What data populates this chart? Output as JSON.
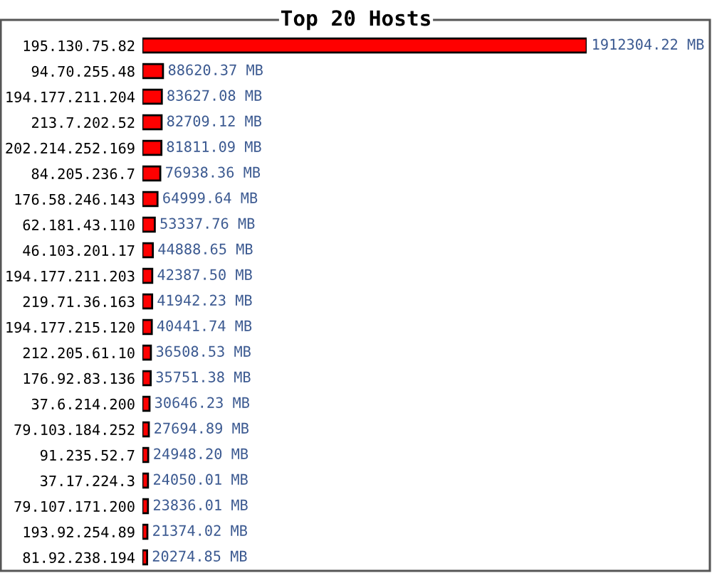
{
  "chart_data": {
    "type": "bar",
    "orientation": "horizontal",
    "title": "Top 20 Hosts",
    "tick_labels": "y",
    "color": "#ff0000",
    "categories": [
      "195.130.75.82",
      "94.70.255.48",
      "194.177.211.204",
      "213.7.202.52",
      "202.214.252.169",
      "84.205.236.7",
      "176.58.246.143",
      "62.181.43.110",
      "46.103.201.17",
      "194.177.211.203",
      "219.71.36.163",
      "194.177.215.120",
      "212.205.61.10",
      "176.92.83.136",
      "37.6.214.200",
      "79.103.184.252",
      "91.235.52.7",
      "37.17.224.3",
      "79.107.171.200",
      "193.92.254.89",
      "81.92.238.194"
    ],
    "values": [
      1912304.22,
      88620.37,
      83627.08,
      82709.12,
      81811.09,
      76938.36,
      64999.64,
      53337.76,
      44888.65,
      42387.5,
      41942.23,
      40441.74,
      36508.53,
      35751.38,
      30646.23,
      27694.89,
      24948.2,
      24050.01,
      23836.01,
      21374.02,
      20274.85
    ],
    "value_labels": [
      "1912304.22 MB",
      "88620.37 MB",
      "83627.08 MB",
      "82709.12 MB",
      "81811.09 MB",
      "76938.36 MB",
      "64999.64 MB",
      "53337.76 MB",
      "44888.65 MB",
      "42387.50 MB",
      "41942.23 MB",
      "40441.74 MB",
      "36508.53 MB",
      "35751.38 MB",
      "30646.23 MB",
      "27694.89 MB",
      "24948.20 MB",
      "24050.01 MB",
      "23836.01 MB",
      "21374.02 MB",
      "20274.85 MB"
    ]
  }
}
